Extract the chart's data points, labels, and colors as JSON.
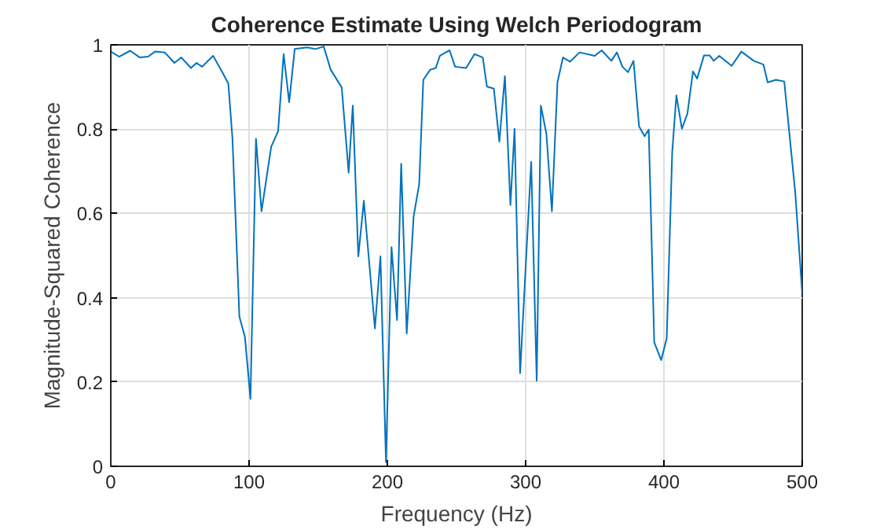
{
  "chart_data": {
    "type": "line",
    "title": "Coherence Estimate Using Welch Periodogram",
    "xlabel": "Frequency (Hz)",
    "ylabel": "Magnitude-Squared Coherence",
    "x": [
      0,
      6,
      14,
      21,
      27,
      32,
      39,
      46,
      51,
      58,
      62,
      66,
      74,
      81,
      85,
      88,
      93,
      97,
      101,
      105,
      109,
      116,
      121,
      125,
      129,
      133,
      142,
      148,
      154,
      159,
      167,
      172,
      175,
      179,
      183,
      191,
      195,
      199,
      203,
      207,
      210,
      214,
      219,
      223,
      226,
      231,
      235,
      238,
      245,
      249,
      257,
      263,
      269,
      272,
      277,
      281,
      285,
      289,
      292,
      296,
      304,
      308,
      311,
      315,
      319,
      323,
      327,
      332,
      339,
      350,
      355,
      362,
      366,
      370,
      374,
      378,
      382,
      386,
      389,
      393,
      398,
      402,
      406,
      409,
      413,
      417,
      421,
      424,
      429,
      433,
      436,
      440,
      449,
      456,
      465,
      472,
      475,
      481,
      487,
      495,
      500
    ],
    "series": [
      {
        "color": "#0072bd",
        "values": [
          0.984,
          0.972,
          0.986,
          0.97,
          0.972,
          0.984,
          0.982,
          0.957,
          0.97,
          0.945,
          0.957,
          0.948,
          0.974,
          0.933,
          0.908,
          0.777,
          0.355,
          0.307,
          0.16,
          0.777,
          0.605,
          0.758,
          0.795,
          0.978,
          0.864,
          0.99,
          0.994,
          0.99,
          0.996,
          0.941,
          0.899,
          0.697,
          0.856,
          0.498,
          0.63,
          0.327,
          0.498,
          0.01,
          0.52,
          0.347,
          0.718,
          0.315,
          0.593,
          0.669,
          0.917,
          0.941,
          0.945,
          0.974,
          0.987,
          0.948,
          0.945,
          0.978,
          0.97,
          0.901,
          0.896,
          0.77,
          0.926,
          0.62,
          0.801,
          0.221,
          0.722,
          0.203,
          0.856,
          0.789,
          0.605,
          0.911,
          0.97,
          0.96,
          0.982,
          0.974,
          0.987,
          0.962,
          0.982,
          0.948,
          0.935,
          0.962,
          0.807,
          0.783,
          0.799,
          0.294,
          0.252,
          0.303,
          0.746,
          0.88,
          0.801,
          0.837,
          0.937,
          0.92,
          0.975,
          0.975,
          0.962,
          0.974,
          0.95,
          0.984,
          0.962,
          0.953,
          0.911,
          0.917,
          0.913,
          0.648,
          0.41
        ]
      }
    ],
    "xlim": [
      0,
      500
    ],
    "xticks": [
      0,
      100,
      200,
      300,
      400,
      500
    ],
    "ylim": [
      0,
      1
    ],
    "yticks": [
      0,
      0.2,
      0.4,
      0.6,
      0.8,
      1
    ],
    "grid": true,
    "line_style": "solid"
  }
}
